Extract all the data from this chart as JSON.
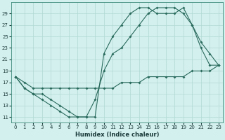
{
  "xlabel": "Humidex (Indice chaleur)",
  "bg_color": "#d4f0ee",
  "line_color": "#2a6b5e",
  "grid_color": "#b0d8d4",
  "xlim": [
    -0.5,
    23.5
  ],
  "ylim": [
    10,
    31
  ],
  "yticks": [
    11,
    13,
    15,
    17,
    19,
    21,
    23,
    25,
    27,
    29
  ],
  "xticks": [
    0,
    1,
    2,
    3,
    4,
    5,
    6,
    7,
    8,
    9,
    10,
    11,
    12,
    13,
    14,
    15,
    16,
    17,
    18,
    19,
    20,
    21,
    22,
    23
  ],
  "line_min_x": [
    0,
    1,
    2,
    3,
    4,
    5,
    6,
    7,
    8,
    9,
    10,
    11,
    12,
    13,
    14,
    15,
    16,
    17,
    18,
    19,
    20,
    21,
    22,
    23
  ],
  "line_min_y": [
    18,
    16,
    15,
    15,
    14,
    13,
    12,
    11,
    11,
    14,
    19,
    22,
    23,
    25,
    27,
    29,
    30,
    30,
    30,
    29,
    27,
    23,
    20,
    20
  ],
  "line_flat_x": [
    0,
    1,
    2,
    3,
    4,
    5,
    6,
    7,
    8,
    9,
    10,
    11,
    12,
    13,
    14,
    15,
    16,
    17,
    18,
    19,
    20,
    21,
    22,
    23
  ],
  "line_flat_y": [
    18,
    17,
    16,
    16,
    16,
    16,
    16,
    16,
    16,
    16,
    16,
    16,
    17,
    17,
    17,
    18,
    18,
    18,
    18,
    18,
    19,
    19,
    19,
    20
  ],
  "line_max_x": [
    0,
    1,
    2,
    3,
    4,
    5,
    6,
    7,
    8,
    9,
    10,
    11,
    12,
    13,
    14,
    15,
    16,
    17,
    18,
    19,
    20,
    21,
    22,
    23
  ],
  "line_max_y": [
    18,
    16,
    15,
    14,
    13,
    12,
    11,
    11,
    11,
    11,
    22,
    25,
    27,
    29,
    30,
    30,
    29,
    29,
    29,
    30,
    27,
    24,
    22,
    20
  ],
  "xlabel_fontsize": 6,
  "tick_fontsize": 5
}
